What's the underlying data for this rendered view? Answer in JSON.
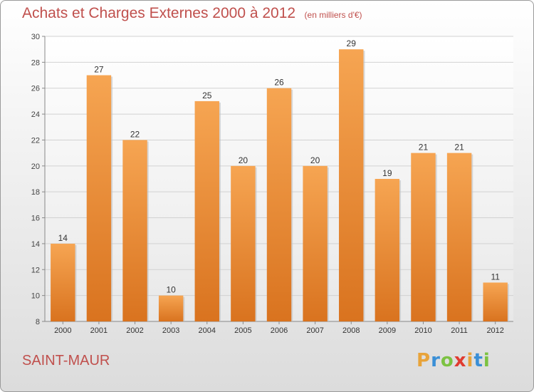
{
  "chart_data": {
    "type": "bar",
    "title": "Achats et Charges Externes 2000 à 2012",
    "subtitle": "(en milliers d'€)",
    "categories": [
      "2000",
      "2001",
      "2002",
      "2003",
      "2004",
      "2005",
      "2006",
      "2007",
      "2008",
      "2009",
      "2010",
      "2011",
      "2012"
    ],
    "values": [
      14,
      27,
      22,
      10,
      25,
      20,
      26,
      20,
      29,
      19,
      21,
      21,
      11
    ],
    "ylim": [
      8,
      30
    ],
    "yticks": [
      8,
      10,
      12,
      14,
      16,
      18,
      20,
      22,
      24,
      26,
      28,
      30
    ],
    "grid": true,
    "bar_color": "#f0913a"
  },
  "commune": "SAINT-MAUR",
  "logo": {
    "letters": [
      {
        "char": "P",
        "color": "#e8a33a"
      },
      {
        "char": "r",
        "color": "#3a8fd6"
      },
      {
        "char": "o",
        "color": "#7cc242"
      },
      {
        "char": "x",
        "color": "#e03c31"
      },
      {
        "char": "i",
        "color": "#e8a33a"
      },
      {
        "char": "t",
        "color": "#3a8fd6"
      },
      {
        "char": "i",
        "color": "#7cc242"
      }
    ]
  }
}
